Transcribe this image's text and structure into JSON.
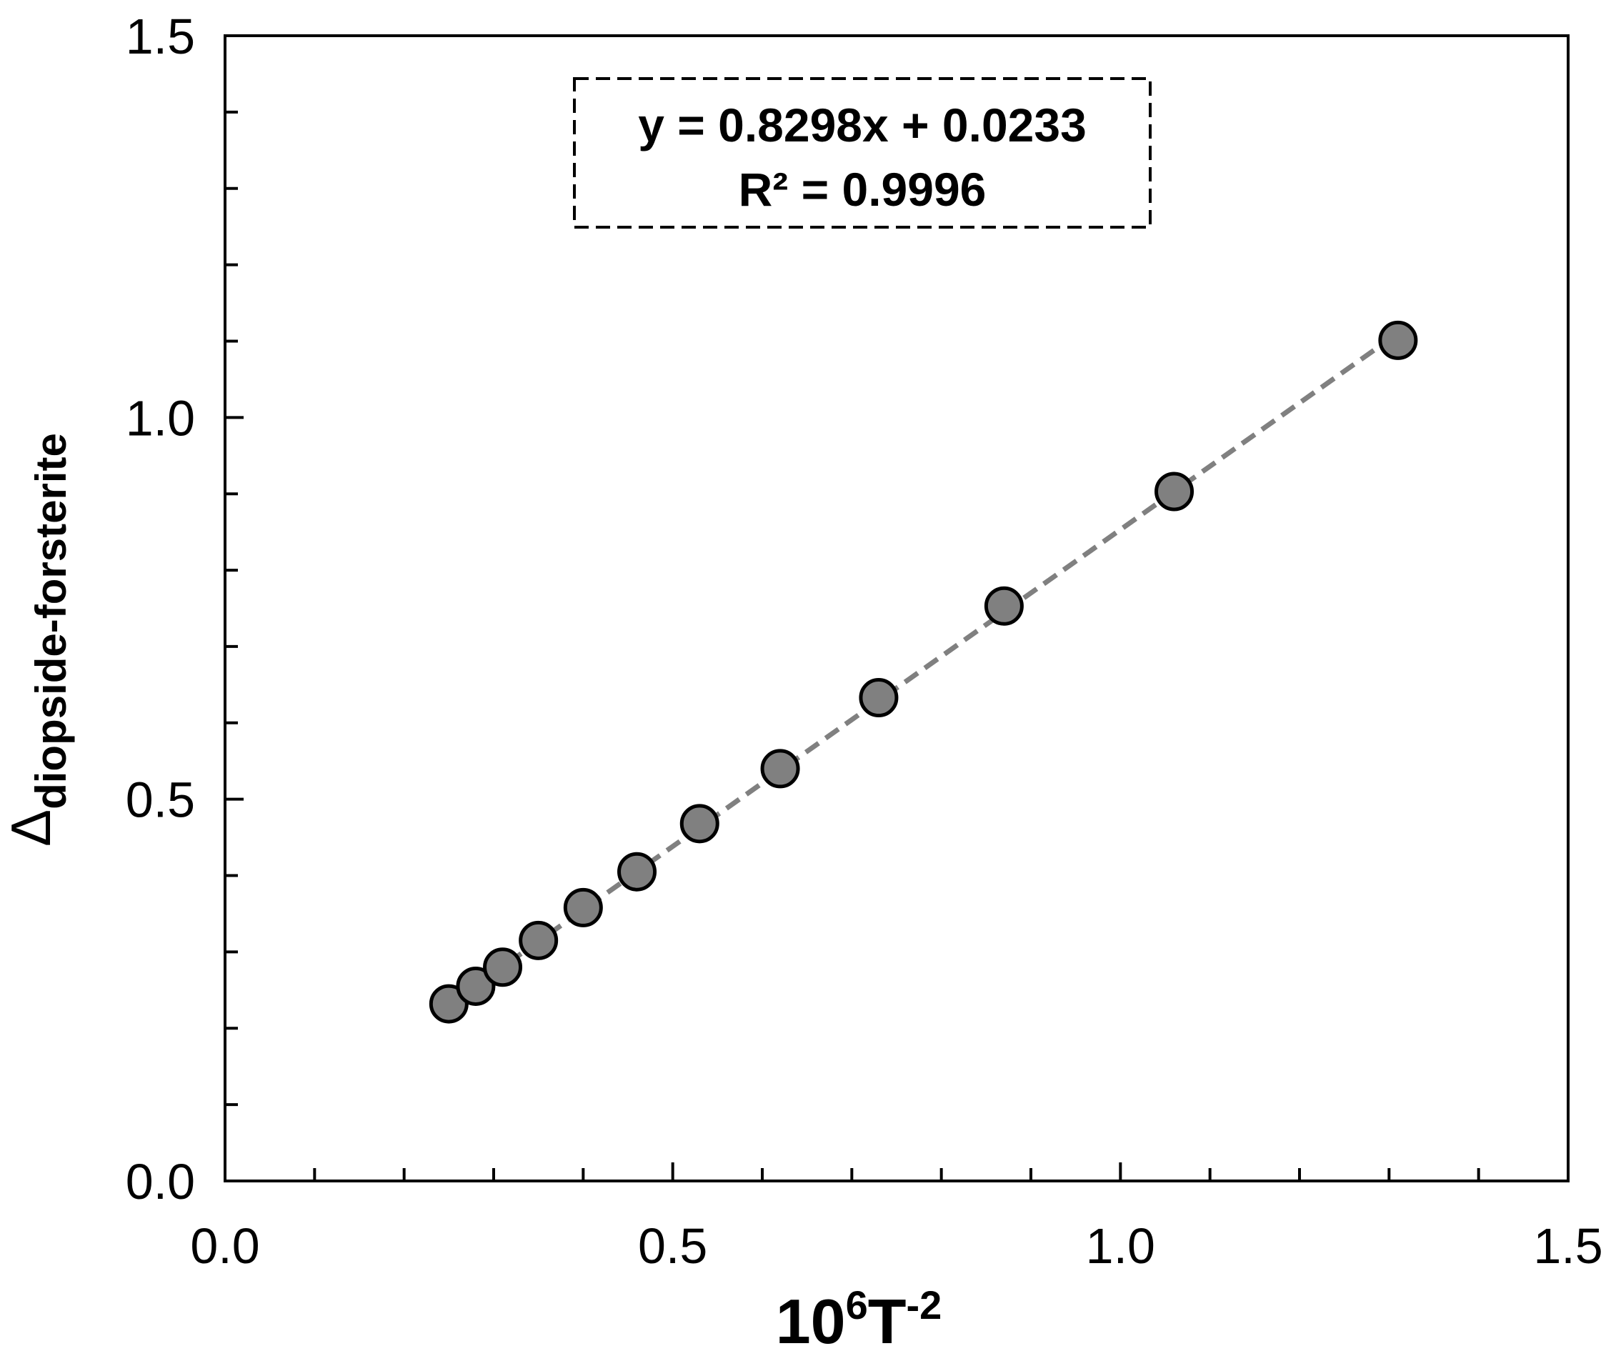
{
  "chart_data": {
    "type": "scatter",
    "xlabel": {
      "base": "10",
      "sup1": "6",
      "mid": "T",
      "sup2": "-2"
    },
    "ylabel": {
      "symbol": "Δ",
      "subscript": "diopside-forsterite"
    },
    "xlim": [
      0.0,
      1.5
    ],
    "ylim": [
      0.0,
      1.5
    ],
    "x_ticks": [
      "0.0",
      "0.5",
      "1.0",
      "1.5"
    ],
    "y_ticks": [
      "0.0",
      "0.5",
      "1.0",
      "1.5"
    ],
    "x_minor_step": 0.1,
    "y_minor_step": 0.1,
    "grid": false,
    "series": [
      {
        "x": [
          0.25,
          0.28,
          0.31,
          0.35,
          0.4,
          0.46,
          0.53,
          0.62,
          0.73,
          0.87,
          1.06,
          1.31
        ],
        "y": [
          0.232,
          0.255,
          0.28,
          0.315,
          0.358,
          0.405,
          0.468,
          0.54,
          0.633,
          0.753,
          0.903,
          1.101
        ]
      }
    ],
    "trendline": {
      "slope": 0.8298,
      "intercept": 0.0233,
      "x_range": [
        0.25,
        1.31
      ],
      "style": "dashed",
      "color": "#808080"
    },
    "annotation": {
      "line1": "y = 0.8298x + 0.0233",
      "line2": "R² = 0.9996"
    },
    "marker_color": "#808080",
    "marker_edge": "#000000"
  }
}
